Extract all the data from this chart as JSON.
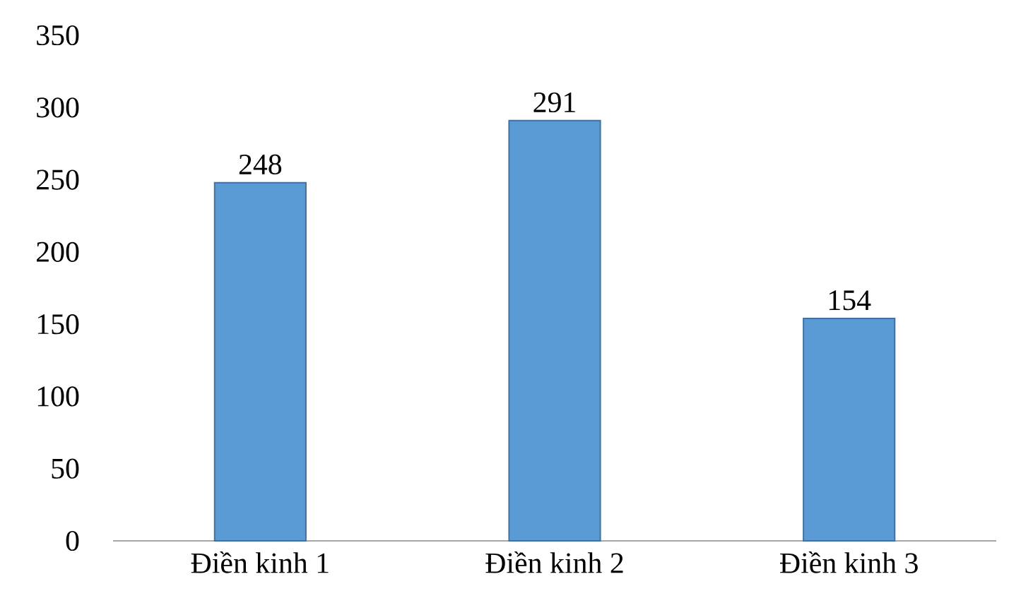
{
  "chart_data": {
    "type": "bar",
    "categories": [
      "Điền kinh 1",
      "Điền kinh 2",
      "Điền kinh 3"
    ],
    "values": [
      248,
      291,
      154
    ],
    "color": "#5b9bd5",
    "ylim": [
      0,
      350
    ],
    "yticks": [
      0,
      50,
      100,
      150,
      200,
      250,
      300,
      350
    ],
    "data_labels": true
  }
}
